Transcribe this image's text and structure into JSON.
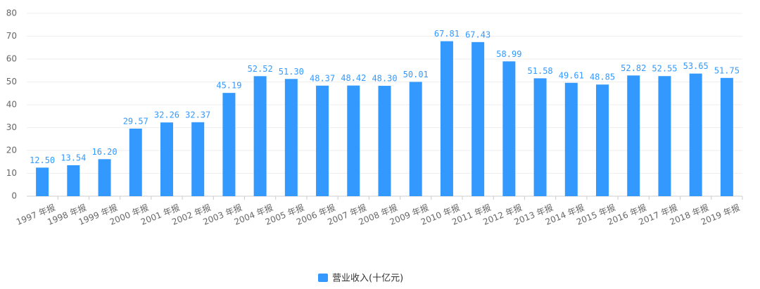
{
  "chart_data": {
    "type": "bar",
    "categories": [
      "1997 年报",
      "1998 年报",
      "1999 年报",
      "2000 年报",
      "2001 年报",
      "2002 年报",
      "2003 年报",
      "2004 年报",
      "2005 年报",
      "2006 年报",
      "2007 年报",
      "2008 年报",
      "2009 年报",
      "2010 年报",
      "2011 年报",
      "2012 年报",
      "2013 年报",
      "2014 年报",
      "2015 年报",
      "2016 年报",
      "2017 年报",
      "2018 年报",
      "2019 年报"
    ],
    "series": [
      {
        "name": "营业收入(十亿元)",
        "color": "#3399ff",
        "values": [
          12.5,
          13.54,
          16.2,
          29.57,
          32.26,
          32.37,
          45.19,
          52.52,
          51.3,
          48.37,
          48.42,
          48.3,
          50.01,
          67.81,
          67.43,
          58.99,
          51.58,
          49.61,
          48.85,
          52.82,
          52.55,
          53.65,
          51.75
        ],
        "value_labels": [
          "12.50",
          "13.54",
          "16.20",
          "29.57",
          "32.26",
          "32.37",
          "45.19",
          "52.52",
          "51.30",
          "48.37",
          "48.42",
          "48.30",
          "50.01",
          "67.81",
          "67.43",
          "58.99",
          "51.58",
          "49.61",
          "48.85",
          "52.82",
          "52.55",
          "53.65",
          "51.75"
        ]
      }
    ],
    "ylim": [
      0,
      80
    ],
    "yticks": [
      0,
      10,
      20,
      30,
      40,
      50,
      60,
      70,
      80
    ],
    "grid": true,
    "legend": "bottom"
  }
}
